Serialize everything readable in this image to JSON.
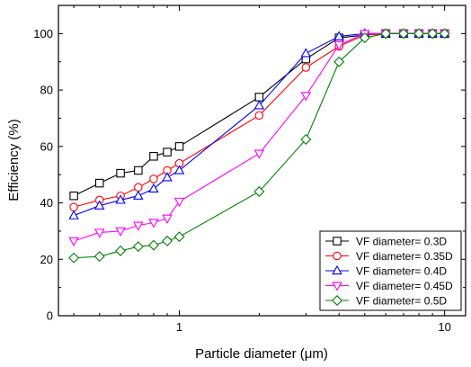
{
  "chart_data": {
    "type": "line",
    "xlabel": "Particle diameter (μm)",
    "ylabel": "Efficiency (%)",
    "x_scale": "log",
    "xlim": [
      0.35,
      12
    ],
    "ylim": [
      0,
      110
    ],
    "x_ticks": [
      1,
      10
    ],
    "x_tick_labels": [
      "1",
      "10"
    ],
    "y_ticks": [
      0,
      20,
      40,
      60,
      80,
      100
    ],
    "y_tick_labels": [
      "0",
      "20",
      "40",
      "60",
      "80",
      "100"
    ],
    "legend_position": "bottom-right",
    "x": [
      0.4,
      0.5,
      0.6,
      0.7,
      0.8,
      0.9,
      1,
      2,
      3,
      4,
      5,
      6,
      7,
      8,
      9,
      10
    ],
    "series": [
      {
        "name": "VF diameter= 0.3D",
        "color": "#000000",
        "marker": "square",
        "values": [
          42.5,
          47,
          50.5,
          51.5,
          56.5,
          58,
          60,
          77.5,
          91,
          98.5,
          99.5,
          100,
          100,
          100,
          100,
          100
        ]
      },
      {
        "name": "VF diameter= 0.35D",
        "color": "#ff0000",
        "marker": "circle",
        "values": [
          38.5,
          41,
          42.5,
          45.5,
          48.5,
          51.5,
          54,
          71,
          88,
          95.5,
          99.5,
          100,
          100,
          100,
          100,
          100
        ]
      },
      {
        "name": "VF diameter= 0.4D",
        "color": "#0000ff",
        "marker": "triangle-up",
        "values": [
          35.5,
          39,
          41,
          42.5,
          45,
          49,
          51.5,
          74.5,
          93,
          99,
          100,
          100,
          100,
          100,
          100,
          100
        ]
      },
      {
        "name": "VF diameter= 0.45D",
        "color": "#ff00ff",
        "marker": "triangle-down",
        "values": [
          26.5,
          29.5,
          30,
          32,
          33,
          34.5,
          40.5,
          57.5,
          78,
          96,
          100,
          100,
          100,
          100,
          100,
          100
        ]
      },
      {
        "name": "VF diameter= 0.5D",
        "color": "#008000",
        "marker": "diamond",
        "values": [
          20.5,
          21,
          23,
          24.5,
          25,
          26.5,
          28,
          44,
          62.5,
          90,
          98.5,
          100,
          100,
          100,
          100,
          100
        ]
      }
    ]
  }
}
